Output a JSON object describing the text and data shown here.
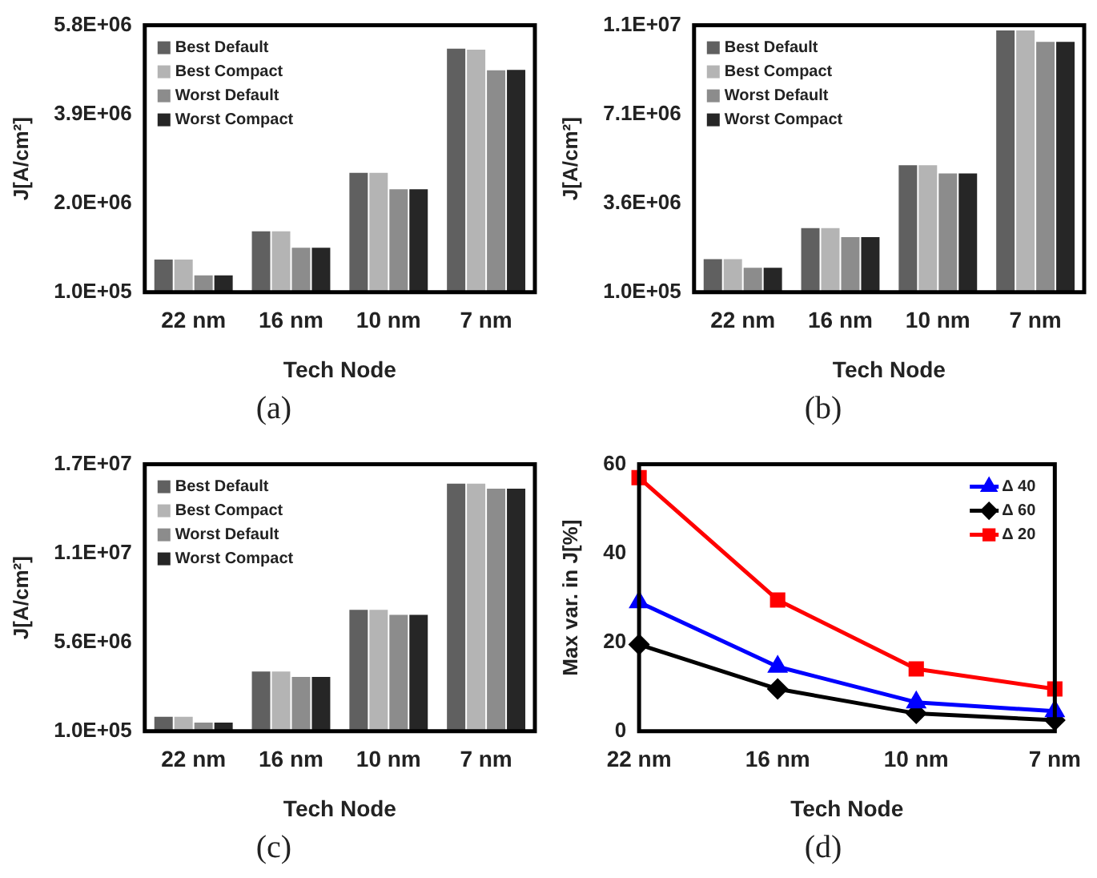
{
  "chart_data": [
    {
      "type": "bar",
      "ylabel": "J[A/cm²]",
      "xlabel": "Tech Node",
      "annotations": [
        "(a)"
      ],
      "categories": [
        "22 nm",
        "16 nm",
        "10 nm",
        "7 nm"
      ],
      "series": [
        {
          "name": "Best Default",
          "color": "#606060",
          "values": [
            800000,
            1400000,
            2650000,
            5300000
          ]
        },
        {
          "name": "Best Compact",
          "color": "#b4b4b4",
          "values": [
            800000,
            1400000,
            2650000,
            5280000
          ]
        },
        {
          "name": "Worst Default",
          "color": "#8c8c8c",
          "values": [
            460000,
            1050000,
            2300000,
            4840000
          ]
        },
        {
          "name": "Worst Compact",
          "color": "#262626",
          "values": [
            460000,
            1050000,
            2300000,
            4850000
          ]
        }
      ],
      "ylim": [
        100000,
        5800000
      ],
      "yticks": [
        {
          "value": 100000,
          "label": "1.0E+05"
        },
        {
          "value": 2000000,
          "label": "2.0E+06"
        },
        {
          "value": 3900000,
          "label": "3.9E+06"
        },
        {
          "value": 5800000,
          "label": "5.8E+06"
        }
      ],
      "grid": false,
      "legend": "top left"
    },
    {
      "type": "bar",
      "ylabel": "J[A/cm²]",
      "xlabel": "Tech Node",
      "annotations": [
        "(b)"
      ],
      "categories": [
        "22 nm",
        "16 nm",
        "10 nm",
        "7 nm"
      ],
      "series": [
        {
          "name": "Best Default",
          "color": "#606060",
          "values": [
            1400000,
            2620000,
            5100000,
            10400000
          ]
        },
        {
          "name": "Best Compact",
          "color": "#b4b4b4",
          "values": [
            1400000,
            2620000,
            5100000,
            10400000
          ]
        },
        {
          "name": "Worst Default",
          "color": "#8c8c8c",
          "values": [
            1060000,
            2270000,
            4770000,
            9950000
          ]
        },
        {
          "name": "Worst Compact",
          "color": "#262626",
          "values": [
            1060000,
            2270000,
            4770000,
            9950000
          ]
        }
      ],
      "ylim": [
        100000,
        10600000
      ],
      "yticks": [
        {
          "value": 100000,
          "label": "1.0E+05"
        },
        {
          "value": 3600000,
          "label": "3.6E+06"
        },
        {
          "value": 7100000,
          "label": "7.1E+06"
        },
        {
          "value": 10600000,
          "label": "1.1E+07"
        }
      ],
      "grid": false,
      "legend": "top left"
    },
    {
      "type": "bar",
      "ylabel": "J[A/cm²]",
      "xlabel": "Tech Node",
      "annotations": [
        "(c)"
      ],
      "categories": [
        "22 nm",
        "16 nm",
        "10 nm",
        "7 nm"
      ],
      "series": [
        {
          "name": "Best Default",
          "color": "#606060",
          "values": [
            990000,
            3790000,
            7600000,
            15400000
          ]
        },
        {
          "name": "Best Compact",
          "color": "#b4b4b4",
          "values": [
            990000,
            3790000,
            7600000,
            15400000
          ]
        },
        {
          "name": "Worst Default",
          "color": "#8c8c8c",
          "values": [
            640000,
            3460000,
            7300000,
            15100000
          ]
        },
        {
          "name": "Worst Compact",
          "color": "#262626",
          "values": [
            640000,
            3460000,
            7300000,
            15100000
          ]
        }
      ],
      "ylim": [
        100000,
        16600000
      ],
      "yticks": [
        {
          "value": 100000,
          "label": "1.0E+05"
        },
        {
          "value": 5600000,
          "label": "5.6E+06"
        },
        {
          "value": 11100000,
          "label": "1.1E+07"
        },
        {
          "value": 16600000,
          "label": "1.7E+07"
        }
      ],
      "grid": false,
      "legend": "top left"
    },
    {
      "type": "line",
      "ylabel": "Max var. in J[%]",
      "xlabel": "Tech Node",
      "annotations": [
        "(d)"
      ],
      "categories": [
        "22 nm",
        "16 nm",
        "10 nm",
        "7 nm"
      ],
      "series": [
        {
          "name": "Δ 40",
          "color": "#0000ff",
          "marker": "triangle",
          "values": [
            29,
            14.5,
            6.5,
            4.5
          ]
        },
        {
          "name": "Δ 60",
          "color": "#000000",
          "marker": "diamond",
          "values": [
            19.5,
            9.5,
            4,
            2.5
          ]
        },
        {
          "name": "Δ 20",
          "color": "#ff0000",
          "marker": "square",
          "values": [
            57,
            29.5,
            14,
            9.5
          ]
        }
      ],
      "ylim": [
        0,
        60
      ],
      "yticks": [
        0,
        20,
        40,
        60
      ],
      "grid": false,
      "legend": "top right",
      "line_style": "solid"
    }
  ]
}
